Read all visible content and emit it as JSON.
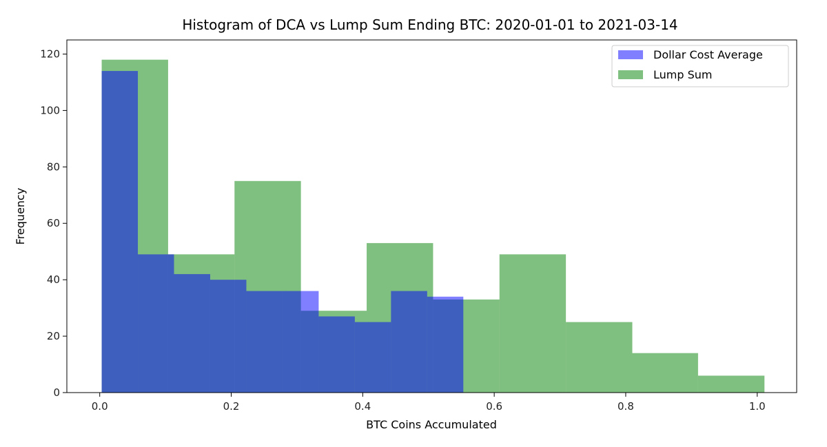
{
  "chart_data": {
    "type": "bar",
    "title": "Histogram of DCA vs Lump Sum Ending BTC: 2020-01-01 to 2021-03-14",
    "xlabel": "BTC Coins Accumulated",
    "ylabel": "Frequency",
    "xlim": [
      -0.05,
      1.06
    ],
    "ylim": [
      0,
      125
    ],
    "xticks": [
      0.0,
      0.2,
      0.4,
      0.6,
      0.8,
      1.0
    ],
    "xtick_labels": [
      "0.0",
      "0.2",
      "0.4",
      "0.6",
      "0.8",
      "1.0"
    ],
    "yticks": [
      0,
      20,
      40,
      60,
      80,
      100,
      120
    ],
    "ytick_labels": [
      "0",
      "20",
      "40",
      "60",
      "80",
      "100",
      "120"
    ],
    "grid": false,
    "legend_position": "top-right",
    "series": [
      {
        "name": "Lump Sum",
        "color": "#008000",
        "opacity": 0.5,
        "bin_edges": [
          0.003,
          0.104,
          0.205,
          0.306,
          0.406,
          0.507,
          0.608,
          0.709,
          0.81,
          0.91,
          1.011
        ],
        "values": [
          118,
          49,
          75,
          29,
          53,
          33,
          49,
          25,
          14,
          6
        ]
      },
      {
        "name": "Dollar Cost Average",
        "color": "#0000ff",
        "opacity": 0.5,
        "bin_edges": [
          0.003,
          0.058,
          0.113,
          0.168,
          0.223,
          0.278,
          0.333,
          0.388,
          0.443,
          0.498,
          0.553
        ],
        "values": [
          114,
          49,
          42,
          40,
          36,
          36,
          27,
          25,
          36,
          34
        ]
      }
    ],
    "legend": [
      "Dollar Cost Average",
      "Lump Sum"
    ]
  }
}
